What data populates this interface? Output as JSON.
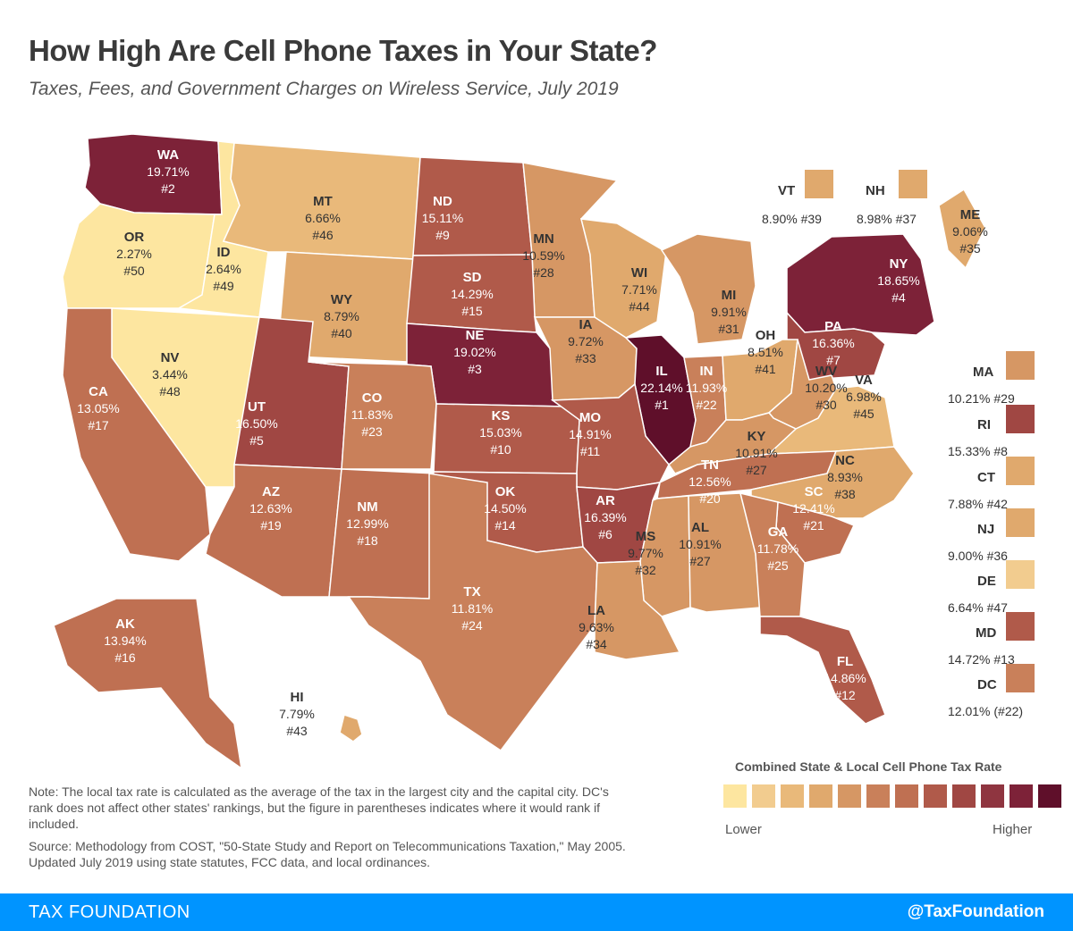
{
  "title": "How High Are Cell Phone Taxes in Your State?",
  "subtitle": "Taxes, Fees, and Government Charges on Wireless Service, July 2019",
  "colors": {
    "scale": [
      "#fde6a0",
      "#f2cc8f",
      "#e9b97a",
      "#e0a96d",
      "#d69764",
      "#c9805a",
      "#bf7052",
      "#b05a4a",
      "#a04743",
      "#8f3540",
      "#7d2238",
      "#5f0f2a"
    ]
  },
  "states": [
    {
      "abbr": "WA",
      "value": "19.71%",
      "rank": "#2",
      "level": 10
    },
    {
      "abbr": "OR",
      "value": "2.27%",
      "rank": "#50",
      "level": 0
    },
    {
      "abbr": "ID",
      "value": "2.64%",
      "rank": "#49",
      "level": 0
    },
    {
      "abbr": "MT",
      "value": "6.66%",
      "rank": "#46",
      "level": 2
    },
    {
      "abbr": "ND",
      "value": "15.11%",
      "rank": "#9",
      "level": 7
    },
    {
      "abbr": "MN",
      "value": "10.59%",
      "rank": "#28",
      "level": 4
    },
    {
      "abbr": "WY",
      "value": "8.79%",
      "rank": "#40",
      "level": 3
    },
    {
      "abbr": "SD",
      "value": "14.29%",
      "rank": "#15",
      "level": 7
    },
    {
      "abbr": "WI",
      "value": "7.71%",
      "rank": "#44",
      "level": 3
    },
    {
      "abbr": "MI",
      "value": "9.91%",
      "rank": "#31",
      "level": 4
    },
    {
      "abbr": "NY",
      "value": "18.65%",
      "rank": "#4",
      "level": 10
    },
    {
      "abbr": "NV",
      "value": "3.44%",
      "rank": "#48",
      "level": 0
    },
    {
      "abbr": "UT",
      "value": "16.50%",
      "rank": "#5",
      "level": 8
    },
    {
      "abbr": "NE",
      "value": "19.02%",
      "rank": "#3",
      "level": 10
    },
    {
      "abbr": "IA",
      "value": "9.72%",
      "rank": "#33",
      "level": 4
    },
    {
      "abbr": "IL",
      "value": "22.14%",
      "rank": "#1",
      "level": 11
    },
    {
      "abbr": "PA",
      "value": "16.36%",
      "rank": "#7",
      "level": 8
    },
    {
      "abbr": "CA",
      "value": "13.05%",
      "rank": "#17",
      "level": 6
    },
    {
      "abbr": "CO",
      "value": "11.83%",
      "rank": "#23",
      "level": 5
    },
    {
      "abbr": "KS",
      "value": "15.03%",
      "rank": "#10",
      "level": 7
    },
    {
      "abbr": "MO",
      "value": "14.91%",
      "rank": "#11",
      "level": 7
    },
    {
      "abbr": "IN",
      "value": "11.93%",
      "rank": "#22",
      "level": 5
    },
    {
      "abbr": "OH",
      "value": "8.51%",
      "rank": "#41",
      "level": 3
    },
    {
      "abbr": "WV",
      "value": "10.20%",
      "rank": "#30",
      "level": 4
    },
    {
      "abbr": "VA",
      "value": "6.98%",
      "rank": "#45",
      "level": 2
    },
    {
      "abbr": "KY",
      "value": "10.91%",
      "rank": "#27",
      "level": 4
    },
    {
      "abbr": "AZ",
      "value": "12.63%",
      "rank": "#19",
      "level": 6
    },
    {
      "abbr": "NM",
      "value": "12.99%",
      "rank": "#18",
      "level": 6
    },
    {
      "abbr": "OK",
      "value": "14.50%",
      "rank": "#14",
      "level": 7
    },
    {
      "abbr": "AR",
      "value": "16.39%",
      "rank": "#6",
      "level": 8
    },
    {
      "abbr": "TN",
      "value": "12.56%",
      "rank": "#20",
      "level": 6
    },
    {
      "abbr": "NC",
      "value": "8.93%",
      "rank": "#38",
      "level": 3
    },
    {
      "abbr": "SC",
      "value": "12.41%",
      "rank": "#21",
      "level": 6
    },
    {
      "abbr": "MS",
      "value": "9.77%",
      "rank": "#32",
      "level": 4
    },
    {
      "abbr": "AL",
      "value": "10.91%",
      "rank": "#27",
      "level": 4
    },
    {
      "abbr": "GA",
      "value": "11.78%",
      "rank": "#25",
      "level": 5
    },
    {
      "abbr": "TX",
      "value": "11.81%",
      "rank": "#24",
      "level": 5
    },
    {
      "abbr": "LA",
      "value": "9.63%",
      "rank": "#34",
      "level": 4
    },
    {
      "abbr": "FL",
      "value": "14.86%",
      "rank": "#12",
      "level": 7
    },
    {
      "abbr": "AK",
      "value": "13.94%",
      "rank": "#16",
      "level": 6
    },
    {
      "abbr": "HI",
      "value": "7.79%",
      "rank": "#43",
      "level": 3
    },
    {
      "abbr": "ME",
      "value": "9.06%",
      "rank": "#35",
      "level": 3
    }
  ],
  "callouts": [
    {
      "abbr": "VT",
      "value": "8.90%",
      "rank": "#39",
      "level": 3
    },
    {
      "abbr": "NH",
      "value": "8.98%",
      "rank": "#37",
      "level": 3
    },
    {
      "abbr": "MA",
      "value": "10.21%",
      "rank": "#29",
      "level": 4
    },
    {
      "abbr": "RI",
      "value": "15.33%",
      "rank": "#8",
      "level": 8
    },
    {
      "abbr": "CT",
      "value": "7.88%",
      "rank": "#42",
      "level": 3
    },
    {
      "abbr": "NJ",
      "value": "9.00%",
      "rank": "#36",
      "level": 3
    },
    {
      "abbr": "DE",
      "value": "6.64%",
      "rank": "#47",
      "level": 1
    },
    {
      "abbr": "MD",
      "value": "14.72%",
      "rank": "#13",
      "level": 7
    },
    {
      "abbr": "DC",
      "value": "12.01%",
      "rank": "(#22)",
      "level": 5
    }
  ],
  "note": "Note: The local tax rate is calculated as the average of the tax in the largest city and the capital city. DC's rank does not affect other states' rankings, but the figure in parentheses indicates where it would rank if included.",
  "source": "Source: Methodology from COST, \"50-State Study and Report on Telecommunications Taxation,\" May 2005.  Updated July 2019 using state statutes, FCC data, and local ordinances.",
  "legend": {
    "title": "Combined State & Local Cell Phone Tax Rate",
    "low_label": "Lower",
    "high_label": "Higher"
  },
  "footer": {
    "left": "TAX FOUNDATION",
    "right": "@TaxFoundation"
  }
}
